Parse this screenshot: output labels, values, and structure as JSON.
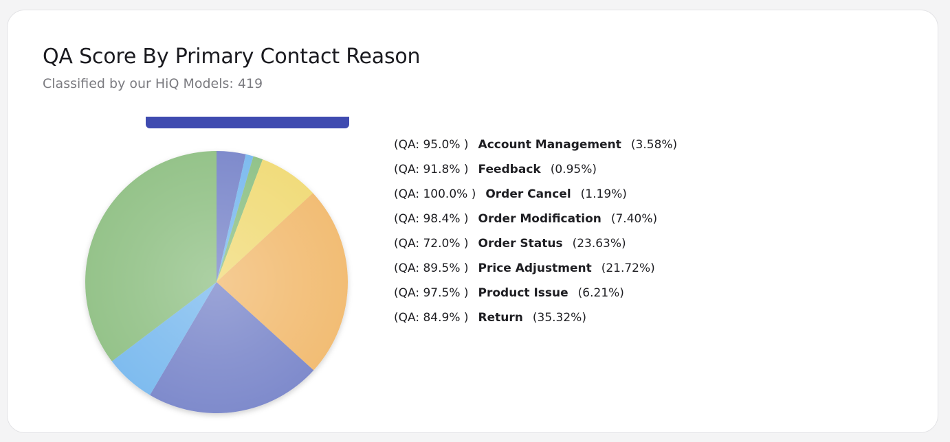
{
  "card": {
    "title": "QA Score By Primary Contact Reason",
    "subtitle": "Classified by our HiQ Models: 419"
  },
  "chart_data": {
    "type": "pie",
    "categories": [
      "Account Management",
      "Feedback",
      "Order Cancel",
      "Order Modification",
      "Order Status",
      "Price Adjustment",
      "Product Issue",
      "Return"
    ],
    "values": [
      3.58,
      0.95,
      1.19,
      7.4,
      23.63,
      21.72,
      6.21,
      35.32
    ],
    "percent_labels": [
      "(3.58%)",
      "(0.95%)",
      "(1.19%)",
      "(7.40%)",
      "(23.63%)",
      "(21.72%)",
      "(6.21%)",
      "(35.32%)"
    ],
    "qa_labels": [
      "(QA: 95.0% )",
      "(QA: 91.8% )",
      "(QA: 100.0% )",
      "(QA: 98.4% )",
      "(QA: 72.0% )",
      "(QA: 89.5% )",
      "(QA: 97.5% )",
      "(QA: 84.9% )"
    ],
    "colors": [
      "#7f8bcc",
      "#7fbcef",
      "#92c38a",
      "#f1dc7c",
      "#f2bd74",
      "#7f8bcc",
      "#7fbcef",
      "#95c38a"
    ],
    "legend_position": "right",
    "start_angle_deg": 0,
    "direction": "clockwise"
  }
}
